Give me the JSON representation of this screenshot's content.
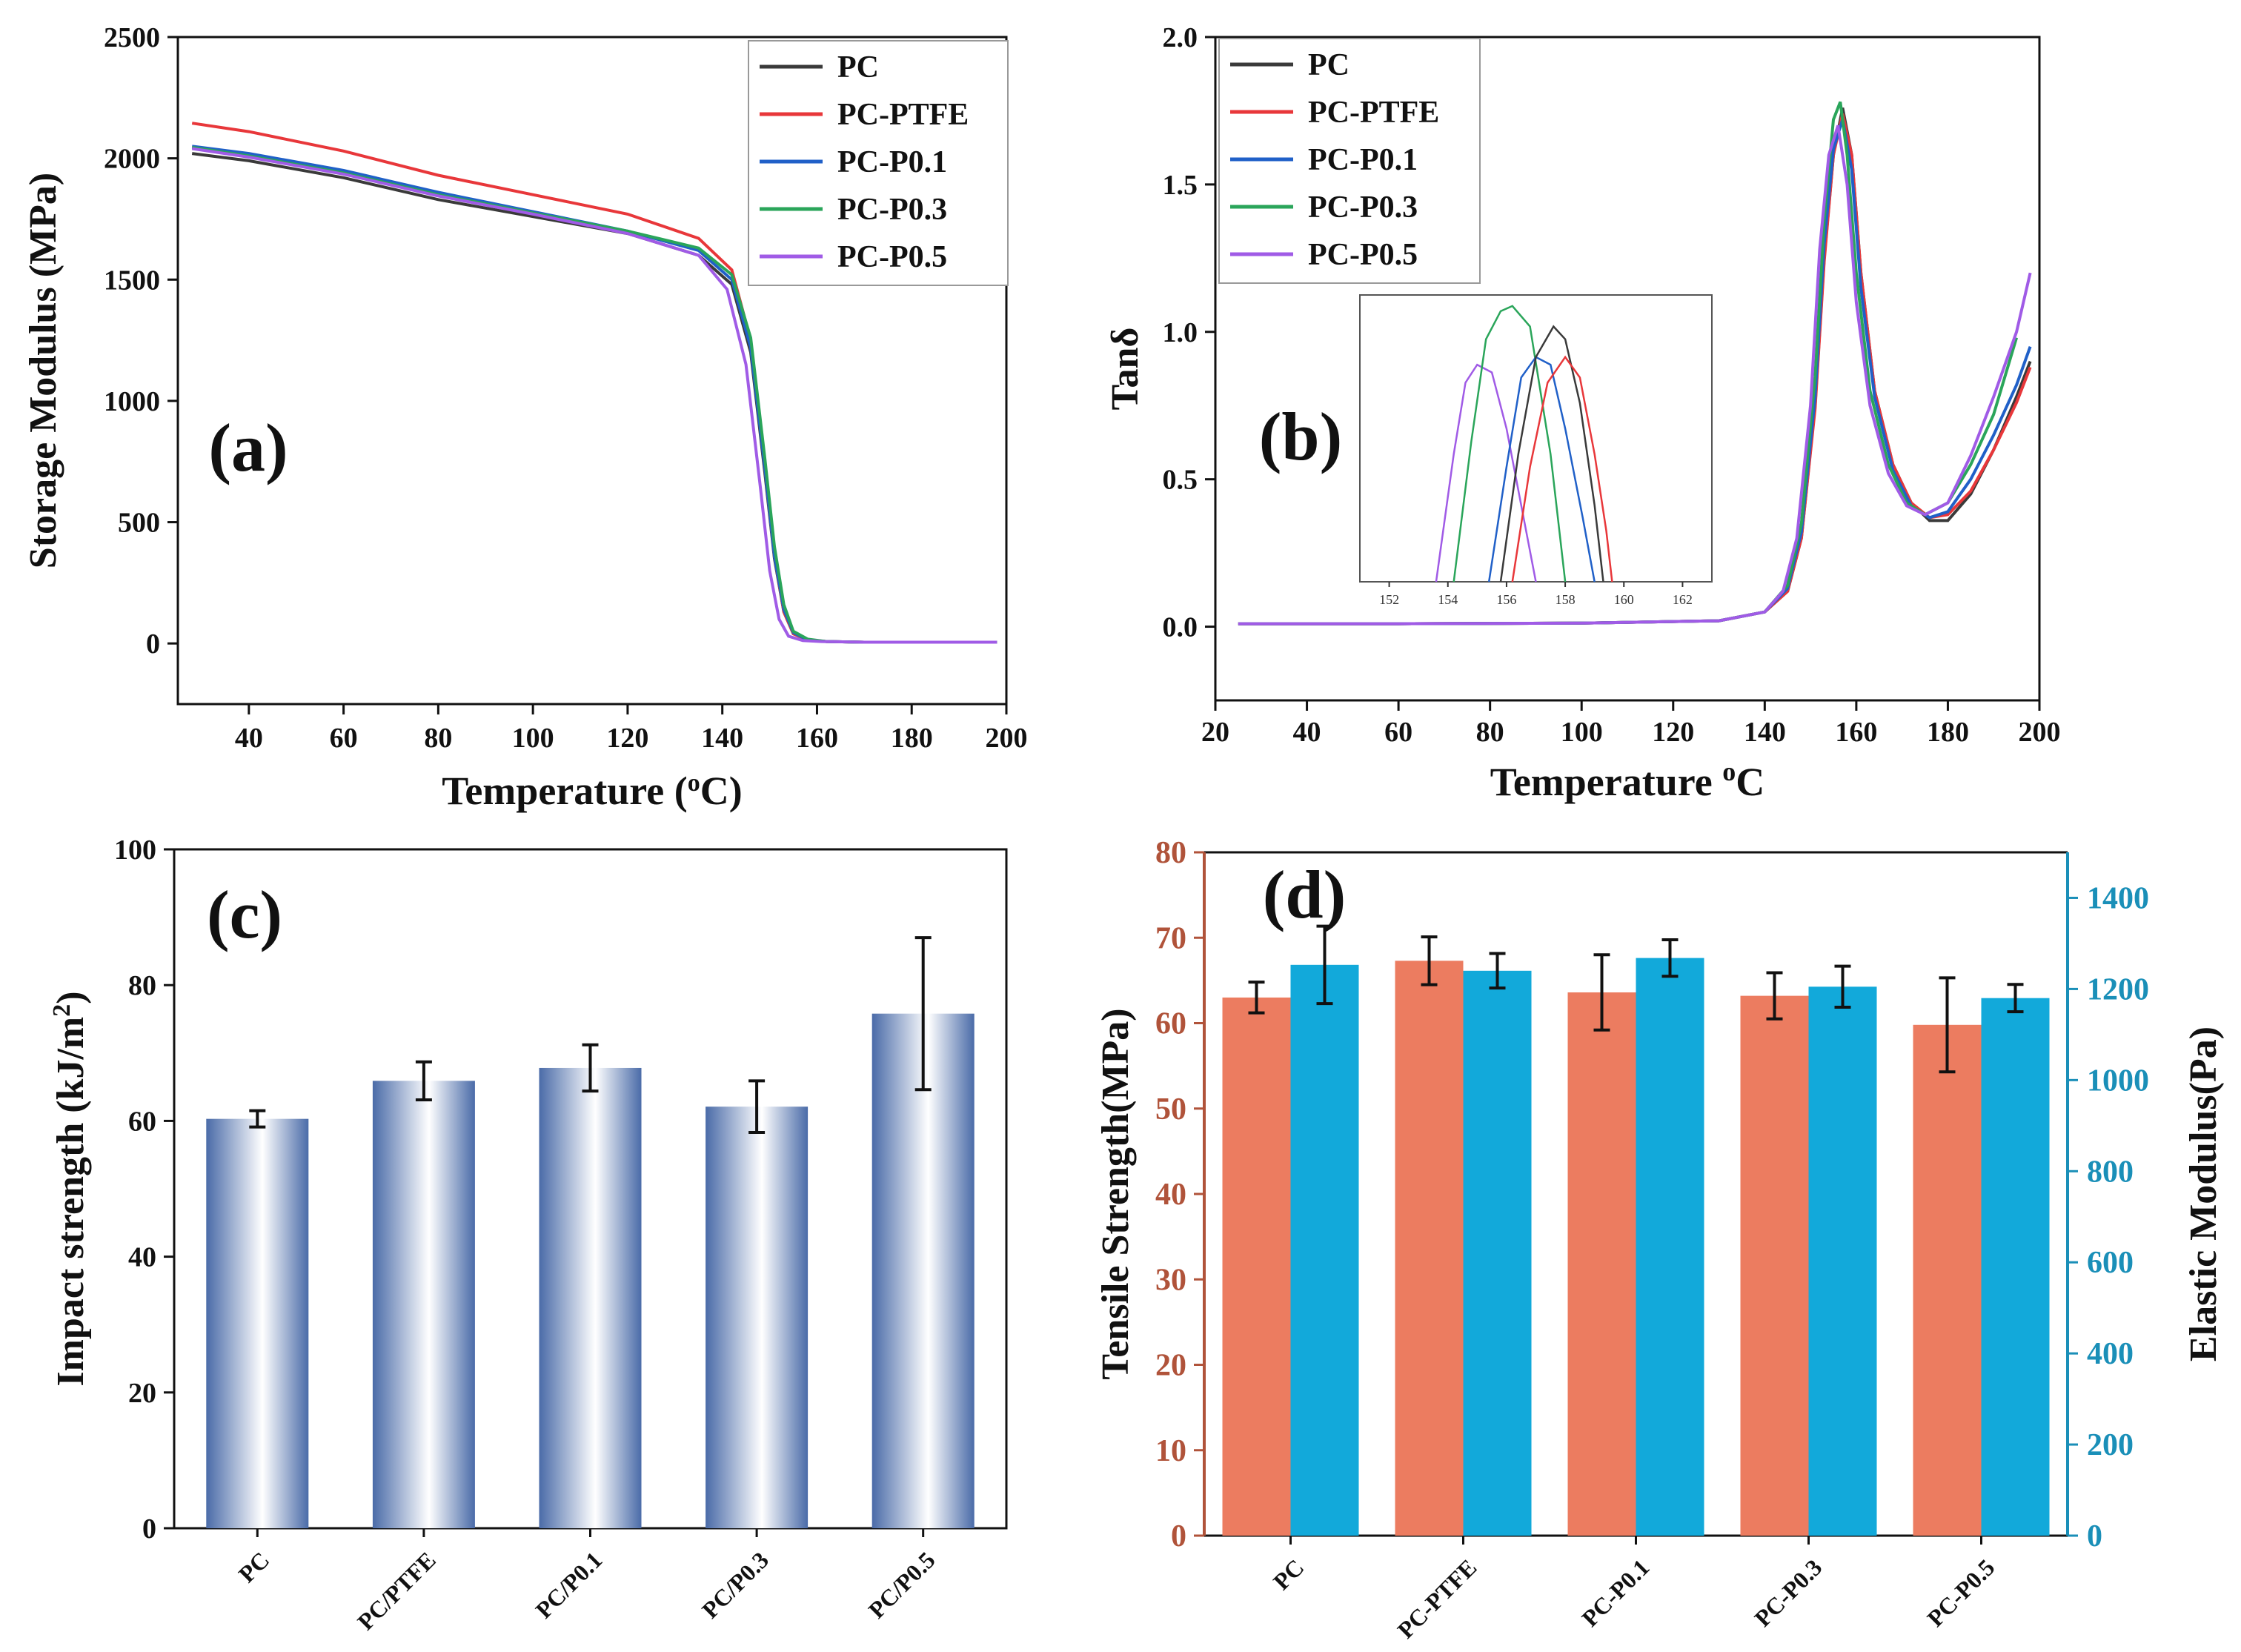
{
  "chart_data": [
    {
      "panel": "(a)",
      "type": "line",
      "xlabel": "Temperature (",
      "xlabel_sup": "o",
      "xlabel_tail": "C)",
      "ylabel": "Storage Modulus (MPa)",
      "xlim": [
        25,
        200
      ],
      "ylim": [
        -250,
        2500
      ],
      "xticks": [
        40,
        60,
        80,
        100,
        120,
        140,
        160,
        180,
        200
      ],
      "yticks": [
        0,
        500,
        1000,
        1500,
        2000,
        2500
      ],
      "legend_position": "top-right",
      "series": [
        {
          "name": "PC",
          "color": "#3a3a3a",
          "x": [
            28,
            40,
            60,
            80,
            100,
            120,
            135,
            142,
            146,
            149,
            151,
            153,
            155,
            158,
            162,
            170,
            198
          ],
          "y": [
            2020,
            1990,
            1920,
            1830,
            1760,
            1690,
            1600,
            1480,
            1200,
            700,
            350,
            130,
            40,
            15,
            8,
            5,
            5
          ]
        },
        {
          "name": "PC-PTFE",
          "color": "#e8373a",
          "x": [
            28,
            40,
            60,
            80,
            100,
            120,
            135,
            142,
            146,
            149,
            151,
            153,
            155,
            158,
            162,
            170,
            198
          ],
          "y": [
            2145,
            2110,
            2030,
            1930,
            1850,
            1770,
            1670,
            1540,
            1250,
            720,
            360,
            130,
            40,
            15,
            8,
            5,
            5
          ]
        },
        {
          "name": "PC-P0.1",
          "color": "#2060c8",
          "x": [
            28,
            40,
            60,
            80,
            100,
            120,
            135,
            142,
            146,
            149,
            151,
            153,
            155,
            158,
            162,
            170,
            198
          ],
          "y": [
            2050,
            2020,
            1950,
            1860,
            1780,
            1700,
            1620,
            1500,
            1220,
            720,
            360,
            140,
            45,
            15,
            8,
            5,
            5
          ]
        },
        {
          "name": "PC-P0.3",
          "color": "#2aa55a",
          "x": [
            28,
            40,
            60,
            80,
            100,
            120,
            135,
            142,
            146,
            149,
            151,
            153,
            155,
            158,
            162,
            170,
            198
          ],
          "y": [
            2045,
            2010,
            1940,
            1850,
            1775,
            1700,
            1630,
            1520,
            1260,
            760,
            400,
            160,
            50,
            18,
            8,
            5,
            5
          ]
        },
        {
          "name": "PC-P0.5",
          "color": "#a05be6",
          "x": [
            28,
            40,
            60,
            80,
            100,
            120,
            135,
            141,
            145,
            148,
            150,
            152,
            154,
            157,
            161,
            170,
            198
          ],
          "y": [
            2040,
            2005,
            1935,
            1845,
            1770,
            1690,
            1600,
            1460,
            1150,
            650,
            300,
            100,
            30,
            12,
            8,
            5,
            5
          ]
        }
      ]
    },
    {
      "panel": "(b)",
      "type": "line",
      "xlabel": "Temperature ",
      "xlabel_sup": "o",
      "xlabel_tail": "C",
      "ylabel": "Tanδ",
      "xlim": [
        20,
        200
      ],
      "ylim": [
        -0.25,
        2.0
      ],
      "xticks": [
        20,
        40,
        60,
        80,
        100,
        120,
        140,
        160,
        180,
        200
      ],
      "yticks": [
        "0.0",
        "0.5",
        "1.0",
        "1.5",
        "2.0"
      ],
      "legend_position": "top-left",
      "series": [
        {
          "name": "PC",
          "color": "#3a3a3a",
          "x": [
            25,
            60,
            100,
            130,
            140,
            145,
            148,
            151,
            153,
            155,
            157,
            159,
            161,
            164,
            168,
            172,
            176,
            180,
            185,
            190,
            195,
            198
          ],
          "y": [
            0.01,
            0.01,
            0.012,
            0.02,
            0.05,
            0.12,
            0.3,
            0.75,
            1.25,
            1.6,
            1.76,
            1.6,
            1.2,
            0.8,
            0.55,
            0.42,
            0.36,
            0.36,
            0.45,
            0.6,
            0.78,
            0.9
          ]
        },
        {
          "name": "PC-PTFE",
          "color": "#e8373a",
          "x": [
            25,
            60,
            100,
            130,
            140,
            145,
            148,
            151,
            153,
            155,
            157,
            159,
            161,
            164,
            168,
            172,
            176,
            180,
            185,
            190,
            195,
            198
          ],
          "y": [
            0.01,
            0.01,
            0.012,
            0.02,
            0.05,
            0.12,
            0.3,
            0.74,
            1.24,
            1.6,
            1.74,
            1.6,
            1.2,
            0.8,
            0.55,
            0.42,
            0.37,
            0.38,
            0.46,
            0.6,
            0.76,
            0.88
          ]
        },
        {
          "name": "PC-P0.1",
          "color": "#2060c8",
          "x": [
            25,
            60,
            100,
            130,
            140,
            145,
            148,
            151,
            153,
            155,
            157,
            159,
            161,
            164,
            168,
            172,
            176,
            180,
            185,
            190,
            195,
            198
          ],
          "y": [
            0.01,
            0.01,
            0.012,
            0.02,
            0.05,
            0.13,
            0.32,
            0.78,
            1.3,
            1.62,
            1.72,
            1.55,
            1.15,
            0.78,
            0.53,
            0.41,
            0.37,
            0.39,
            0.5,
            0.65,
            0.82,
            0.95
          ]
        },
        {
          "name": "PC-P0.3",
          "color": "#2aa55a",
          "x": [
            25,
            60,
            100,
            130,
            140,
            145,
            148,
            151,
            153,
            155,
            156.5,
            158,
            160,
            163,
            167,
            171,
            175,
            180,
            185,
            190,
            195
          ],
          "y": [
            0.01,
            0.01,
            0.012,
            0.02,
            0.05,
            0.14,
            0.35,
            0.85,
            1.38,
            1.72,
            1.78,
            1.6,
            1.2,
            0.8,
            0.55,
            0.42,
            0.38,
            0.42,
            0.55,
            0.72,
            0.98
          ]
        },
        {
          "name": "PC-P0.5",
          "color": "#a05be6",
          "x": [
            25,
            60,
            100,
            130,
            140,
            144,
            147,
            150,
            152,
            154,
            156,
            158,
            160,
            163,
            167,
            171,
            175,
            180,
            185,
            190,
            195,
            198
          ],
          "y": [
            0.01,
            0.01,
            0.012,
            0.02,
            0.05,
            0.12,
            0.3,
            0.75,
            1.28,
            1.6,
            1.7,
            1.5,
            1.1,
            0.75,
            0.52,
            0.41,
            0.38,
            0.42,
            0.58,
            0.78,
            1.0,
            1.2
          ]
        }
      ],
      "inset": {
        "xlim": [
          151,
          163
        ],
        "ylim": [
          0.0,
          1.1
        ],
        "xticks": [
          152,
          154,
          156,
          158,
          160,
          162
        ],
        "series": [
          {
            "name": "PC-P0.5",
            "color": "#a05be6",
            "x": [
              153.6,
              154.2,
              154.6,
              155.0,
              155.5,
              156.0,
              156.5,
              157.0
            ],
            "y": [
              0.0,
              0.5,
              0.78,
              0.85,
              0.82,
              0.6,
              0.3,
              0.0
            ]
          },
          {
            "name": "PC-P0.3",
            "color": "#2aa55a",
            "x": [
              154.2,
              154.8,
              155.3,
              155.8,
              156.2,
              156.8,
              157.5,
              158.0
            ],
            "y": [
              0.0,
              0.55,
              0.95,
              1.06,
              1.08,
              1.0,
              0.5,
              0.0
            ]
          },
          {
            "name": "PC-P0.1",
            "color": "#2060c8",
            "x": [
              155.4,
              156.0,
              156.5,
              157.0,
              157.5,
              158.0,
              158.6,
              159.0
            ],
            "y": [
              0.0,
              0.45,
              0.8,
              0.88,
              0.85,
              0.6,
              0.25,
              0.0
            ]
          },
          {
            "name": "PC",
            "color": "#3a3a3a",
            "x": [
              155.8,
              156.4,
              157.0,
              157.6,
              158.0,
              158.5,
              159.0,
              159.3
            ],
            "y": [
              0.0,
              0.5,
              0.88,
              1.0,
              0.95,
              0.7,
              0.3,
              0.0
            ]
          },
          {
            "name": "PC-PTFE",
            "color": "#e8373a",
            "x": [
              156.2,
              156.8,
              157.4,
              158.0,
              158.5,
              159.0,
              159.4,
              159.6
            ],
            "y": [
              0.0,
              0.45,
              0.78,
              0.88,
              0.8,
              0.5,
              0.2,
              0.0
            ]
          }
        ]
      }
    },
    {
      "panel": "(c)",
      "type": "bar",
      "ylabel": "Impact strength (kJ/m",
      "ylabel_sup": "2",
      "ylabel_tail": ")",
      "ylim": [
        0,
        100
      ],
      "yticks": [
        0,
        20,
        40,
        60,
        80,
        100
      ],
      "categories": [
        "PC",
        "PC/PTFE",
        "PC/P0.1",
        "PC/P0.3",
        "PC/P0.5"
      ],
      "values": [
        60.3,
        65.9,
        67.8,
        62.1,
        75.8
      ],
      "errors": [
        1.2,
        2.8,
        3.4,
        3.8,
        11.2
      ]
    },
    {
      "panel": "(d)",
      "type": "bar",
      "ylabel": "Tensile Strength(MPa)",
      "ylabel_right": "Elastic Modulus(Pa)",
      "ylim": [
        0,
        80
      ],
      "ylim_right": [
        0,
        1500
      ],
      "yticks": [
        0,
        10,
        20,
        30,
        40,
        50,
        60,
        70,
        80
      ],
      "yticks_right": [
        0,
        200,
        400,
        600,
        800,
        1000,
        1200,
        1400
      ],
      "left_color": "#b0533a",
      "right_color": "#1a8fb8",
      "categories": [
        "PC",
        "PC-PTFE",
        "PC-P0.1",
        "PC-P0.3",
        "PC-P0.5"
      ],
      "series": [
        {
          "name": "Tensile Strength",
          "axis": "left",
          "color": "#ec7c60",
          "values": [
            63.0,
            67.3,
            63.6,
            63.2,
            59.8
          ],
          "errors": [
            1.8,
            2.8,
            4.4,
            2.7,
            5.5
          ]
        },
        {
          "name": "Elastic Modulus",
          "axis": "right",
          "color": "#12a9da",
          "values": [
            1253,
            1240,
            1268,
            1205,
            1180
          ],
          "errors": [
            85,
            38,
            40,
            45,
            30
          ]
        }
      ]
    }
  ]
}
